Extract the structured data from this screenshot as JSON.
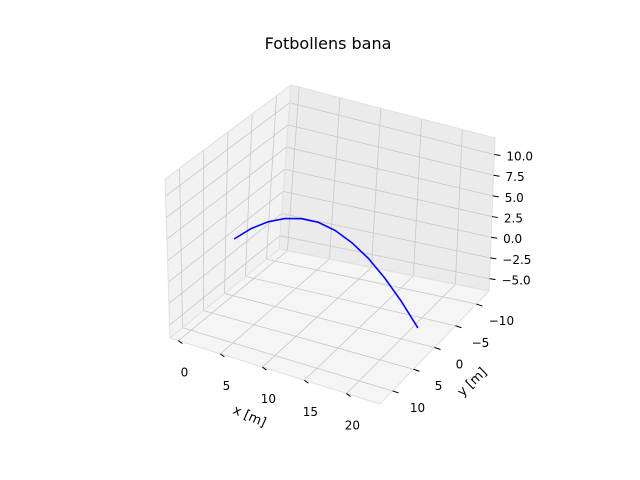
{
  "chart_data": {
    "type": "line",
    "projection": "3d",
    "title": "Fotbollens bana",
    "xlabel": "x [m]",
    "ylabel": "y [m]",
    "zlabel": "",
    "xlim": [
      -1,
      24
    ],
    "ylim": [
      -13,
      13
    ],
    "zlim": [
      -6.5,
      12
    ],
    "xticks": [
      "0",
      "5",
      "10",
      "15",
      "20"
    ],
    "xtick_values": [
      0,
      5,
      10,
      15,
      20
    ],
    "yticks": [
      "−10",
      "−5",
      "0",
      "5",
      "10"
    ],
    "ytick_values": [
      -10,
      -5,
      0,
      5,
      10
    ],
    "zticks": [
      "−5.0",
      "−2.5",
      "0.0",
      "2.5",
      "5.0",
      "7.5",
      "10.0"
    ],
    "ztick_values": [
      -5,
      -2.5,
      0,
      2.5,
      5,
      7.5,
      10
    ],
    "grid": true,
    "series": [
      {
        "color": "#0000ff",
        "x": [
          0,
          2,
          4,
          6,
          8,
          10,
          12,
          14,
          16,
          18,
          20,
          22
        ],
        "y": [
          0,
          0,
          0,
          0,
          0,
          0,
          0,
          0,
          0,
          0,
          0,
          0
        ],
        "z": [
          0,
          1.7,
          3.0,
          3.9,
          4.4,
          4.5,
          4.1,
          3.2,
          1.9,
          0.1,
          -2.1,
          -4.7
        ]
      }
    ]
  }
}
